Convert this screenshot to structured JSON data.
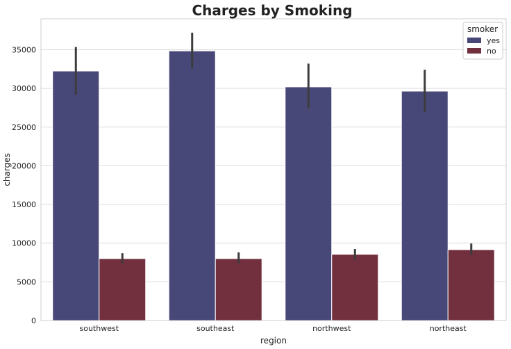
{
  "chart_data": {
    "type": "bar",
    "title": "Charges by Smoking",
    "xlabel": "region",
    "ylabel": "charges",
    "categories": [
      "southwest",
      "southeast",
      "northwest",
      "northeast"
    ],
    "ylim": [
      0,
      39000
    ],
    "yticks": [
      0,
      5000,
      10000,
      15000,
      20000,
      25000,
      30000,
      35000
    ],
    "grid": "horizontal",
    "legend": {
      "title": "smoker",
      "placement": "top-right"
    },
    "series": [
      {
        "name": "yes",
        "color": "#484878",
        "values": [
          32250,
          34850,
          30200,
          29650
        ],
        "err_low": [
          29200,
          32600,
          27400,
          26900
        ],
        "err_high": [
          35350,
          37200,
          33200,
          32400
        ]
      },
      {
        "name": "no",
        "color": "#72303f",
        "values": [
          8000,
          8000,
          8550,
          9150
        ],
        "err_low": [
          7400,
          7400,
          7850,
          8500
        ],
        "err_high": [
          8700,
          8800,
          9250,
          9950
        ]
      }
    ]
  }
}
